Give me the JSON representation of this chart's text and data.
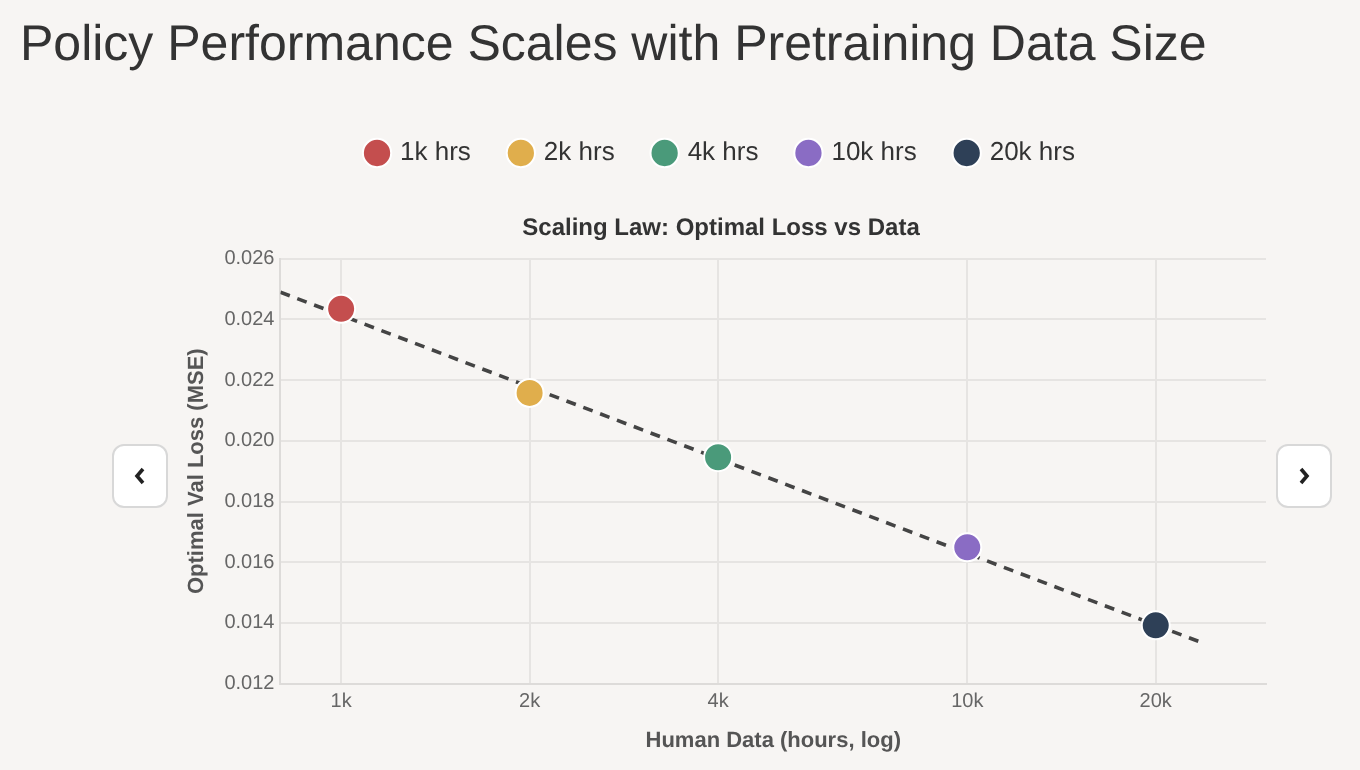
{
  "chart_data": {
    "type": "scatter",
    "title": "Policy Performance Scales with Pretraining Data Size",
    "subtitle": "Scaling Law: Optimal Loss vs Data",
    "xlabel": "Human Data (hours, log)",
    "ylabel": "Optimal Val Loss (MSE)",
    "log": "x",
    "grid": true,
    "legend": "top",
    "marker": "circle",
    "xlim": [
      800,
      30000
    ],
    "xticks": [
      {
        "value": 1000,
        "label": "1k"
      },
      {
        "value": 2000,
        "label": "2k"
      },
      {
        "value": 4000,
        "label": "4k"
      },
      {
        "value": 10000,
        "label": "10k"
      },
      {
        "value": 20000,
        "label": "20k"
      }
    ],
    "ylim": [
      0.012,
      0.026
    ],
    "yticks": [
      0.012,
      0.014,
      0.016,
      0.018,
      {
        "value": 0.02,
        "label": "0.020"
      },
      0.022,
      0.024,
      0.026
    ],
    "series": [
      {
        "name": "1k hrs",
        "color": "#c44e4e",
        "x": [
          1000
        ],
        "values": [
          0.02435
        ]
      },
      {
        "name": "2k hrs",
        "color": "#e0ae4c",
        "x": [
          2000
        ],
        "values": [
          0.02158
        ]
      },
      {
        "name": "4k hrs",
        "color": "#4a9a7a",
        "x": [
          4000
        ],
        "values": [
          0.01946
        ]
      },
      {
        "name": "10k hrs",
        "color": "#8a6cc4",
        "x": [
          10000
        ],
        "values": [
          0.01649
        ]
      },
      {
        "name": "20k hrs",
        "color": "#2e4057",
        "x": [
          20000
        ],
        "values": [
          0.01392
        ]
      },
      {
        "type": "line",
        "color": "#444444",
        "line_style": "dashed",
        "marker": "none",
        "x": [
          800,
          23700
        ],
        "values": [
          0.0249,
          0.01335
        ]
      }
    ]
  }
}
